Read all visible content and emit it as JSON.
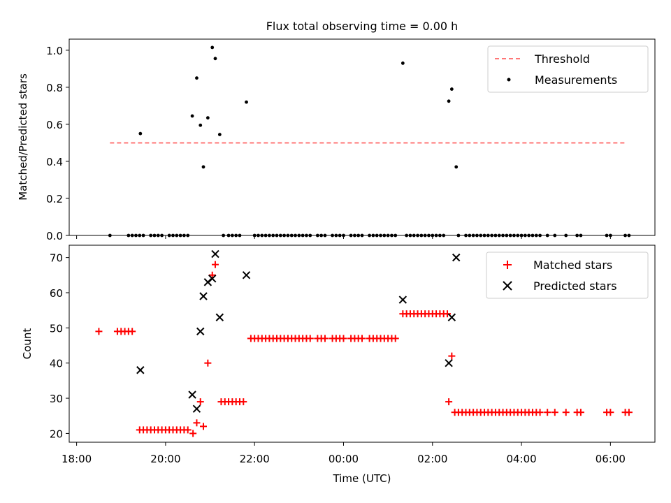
{
  "chart_data": [
    {
      "type": "scatter",
      "title": "Flux total observing time = 0.00 h",
      "xlabel": "",
      "ylabel": "Matched/Predicted stars",
      "ylim": [
        0,
        1.06
      ],
      "yticks": [
        "0.0",
        "0.2",
        "0.4",
        "0.6",
        "0.8",
        "1.0"
      ],
      "legend": "top-right",
      "series": [
        {
          "name": "Threshold",
          "style": "dashed-line",
          "color": "#ff7777",
          "x": [
            "18:45",
            "06:20"
          ],
          "y": [
            0.5,
            0.5
          ]
        },
        {
          "name": "Measurements",
          "style": "dot",
          "color": "#000000",
          "points": [
            [
              "18:45",
              0
            ],
            [
              "19:10",
              0
            ],
            [
              "19:15",
              0
            ],
            [
              "19:20",
              0
            ],
            [
              "19:25",
              0
            ],
            [
              "19:30",
              0
            ],
            [
              "19:40",
              0
            ],
            [
              "19:45",
              0
            ],
            [
              "19:50",
              0
            ],
            [
              "19:55",
              0
            ],
            [
              "20:05",
              0
            ],
            [
              "20:10",
              0
            ],
            [
              "20:15",
              0
            ],
            [
              "20:20",
              0
            ],
            [
              "20:25",
              0
            ],
            [
              "20:30",
              0
            ],
            [
              "19:26",
              0.55
            ],
            [
              "20:36",
              0.645
            ],
            [
              "20:42",
              0.85
            ],
            [
              "20:47",
              0.595
            ],
            [
              "20:51",
              0.37
            ],
            [
              "20:57",
              0.635
            ],
            [
              "21:03",
              1.015
            ],
            [
              "21:07",
              0.955
            ],
            [
              "21:13",
              0.545
            ],
            [
              "21:49",
              0.72
            ],
            [
              "21:18",
              0
            ],
            [
              "21:25",
              0
            ],
            [
              "21:30",
              0
            ],
            [
              "21:35",
              0
            ],
            [
              "21:40",
              0
            ],
            [
              "22:00",
              0
            ],
            [
              "22:05",
              0
            ],
            [
              "22:10",
              0
            ],
            [
              "22:15",
              0
            ],
            [
              "22:20",
              0
            ],
            [
              "22:25",
              0
            ],
            [
              "22:30",
              0
            ],
            [
              "22:35",
              0
            ],
            [
              "22:40",
              0
            ],
            [
              "22:45",
              0
            ],
            [
              "22:50",
              0
            ],
            [
              "22:55",
              0
            ],
            [
              "23:00",
              0
            ],
            [
              "23:05",
              0
            ],
            [
              "23:10",
              0
            ],
            [
              "23:15",
              0
            ],
            [
              "23:25",
              0
            ],
            [
              "23:30",
              0
            ],
            [
              "23:35",
              0
            ],
            [
              "23:45",
              0
            ],
            [
              "23:50",
              0
            ],
            [
              "23:55",
              0
            ],
            [
              "00:00",
              0
            ],
            [
              "00:10",
              0
            ],
            [
              "00:15",
              0
            ],
            [
              "00:20",
              0
            ],
            [
              "00:25",
              0
            ],
            [
              "00:35",
              0
            ],
            [
              "00:40",
              0
            ],
            [
              "00:45",
              0
            ],
            [
              "00:50",
              0
            ],
            [
              "00:55",
              0
            ],
            [
              "01:00",
              0
            ],
            [
              "01:05",
              0
            ],
            [
              "01:10",
              0
            ],
            [
              "01:25",
              0
            ],
            [
              "01:30",
              0
            ],
            [
              "01:35",
              0
            ],
            [
              "01:40",
              0
            ],
            [
              "01:45",
              0
            ],
            [
              "01:50",
              0
            ],
            [
              "01:55",
              0
            ],
            [
              "02:00",
              0
            ],
            [
              "02:05",
              0
            ],
            [
              "02:10",
              0
            ],
            [
              "02:15",
              0
            ],
            [
              "01:20",
              0.93
            ],
            [
              "02:22",
              0.725
            ],
            [
              "02:26",
              0.79
            ],
            [
              "02:32",
              0.37
            ],
            [
              "02:35",
              0
            ],
            [
              "02:45",
              0
            ],
            [
              "02:50",
              0
            ],
            [
              "02:55",
              0
            ],
            [
              "03:00",
              0
            ],
            [
              "03:05",
              0
            ],
            [
              "03:10",
              0
            ],
            [
              "03:15",
              0
            ],
            [
              "03:20",
              0
            ],
            [
              "03:25",
              0
            ],
            [
              "03:30",
              0
            ],
            [
              "03:35",
              0
            ],
            [
              "03:40",
              0
            ],
            [
              "03:45",
              0
            ],
            [
              "03:50",
              0
            ],
            [
              "03:55",
              0
            ],
            [
              "04:00",
              0
            ],
            [
              "04:05",
              0
            ],
            [
              "04:10",
              0
            ],
            [
              "04:15",
              0
            ],
            [
              "04:20",
              0
            ],
            [
              "04:25",
              0
            ],
            [
              "04:35",
              0
            ],
            [
              "04:45",
              0
            ],
            [
              "05:00",
              0
            ],
            [
              "05:15",
              0
            ],
            [
              "05:20",
              0
            ],
            [
              "05:55",
              0
            ],
            [
              "06:00",
              0
            ],
            [
              "06:20",
              0
            ],
            [
              "06:25",
              0
            ]
          ]
        }
      ]
    },
    {
      "type": "scatter",
      "title": "",
      "xlabel": "Time (UTC)",
      "ylabel": "Count",
      "ylim": [
        17.5,
        73.5
      ],
      "yticks": [
        "20",
        "30",
        "40",
        "50",
        "60",
        "70"
      ],
      "xlim": [
        "17:50",
        "07:00"
      ],
      "xticks": [
        "18:00",
        "20:00",
        "22:00",
        "00:00",
        "02:00",
        "04:00",
        "06:00"
      ],
      "legend": "top-right",
      "series": [
        {
          "name": "Matched stars",
          "style": "plus",
          "color": "#ff0000",
          "points": [
            [
              "18:30",
              49
            ],
            [
              "18:55",
              49
            ],
            [
              "19:00",
              49
            ],
            [
              "19:05",
              49
            ],
            [
              "19:10",
              49
            ],
            [
              "19:15",
              49
            ],
            [
              "19:25",
              21
            ],
            [
              "19:30",
              21
            ],
            [
              "19:35",
              21
            ],
            [
              "19:40",
              21
            ],
            [
              "19:45",
              21
            ],
            [
              "19:50",
              21
            ],
            [
              "19:55",
              21
            ],
            [
              "20:00",
              21
            ],
            [
              "20:05",
              21
            ],
            [
              "20:10",
              21
            ],
            [
              "20:15",
              21
            ],
            [
              "20:20",
              21
            ],
            [
              "20:25",
              21
            ],
            [
              "20:30",
              21
            ],
            [
              "20:37",
              20
            ],
            [
              "20:42",
              23
            ],
            [
              "20:47",
              29
            ],
            [
              "20:51",
              22
            ],
            [
              "20:57",
              40
            ],
            [
              "21:03",
              65
            ],
            [
              "21:07",
              68
            ],
            [
              "21:15",
              29
            ],
            [
              "21:20",
              29
            ],
            [
              "21:25",
              29
            ],
            [
              "21:30",
              29
            ],
            [
              "21:35",
              29
            ],
            [
              "21:40",
              29
            ],
            [
              "21:45",
              29
            ],
            [
              "21:55",
              47
            ],
            [
              "22:00",
              47
            ],
            [
              "22:05",
              47
            ],
            [
              "22:10",
              47
            ],
            [
              "22:15",
              47
            ],
            [
              "22:20",
              47
            ],
            [
              "22:25",
              47
            ],
            [
              "22:30",
              47
            ],
            [
              "22:35",
              47
            ],
            [
              "22:40",
              47
            ],
            [
              "22:45",
              47
            ],
            [
              "22:50",
              47
            ],
            [
              "22:55",
              47
            ],
            [
              "23:00",
              47
            ],
            [
              "23:05",
              47
            ],
            [
              "23:10",
              47
            ],
            [
              "23:15",
              47
            ],
            [
              "23:25",
              47
            ],
            [
              "23:30",
              47
            ],
            [
              "23:35",
              47
            ],
            [
              "23:45",
              47
            ],
            [
              "23:50",
              47
            ],
            [
              "23:55",
              47
            ],
            [
              "00:00",
              47
            ],
            [
              "00:10",
              47
            ],
            [
              "00:15",
              47
            ],
            [
              "00:20",
              47
            ],
            [
              "00:25",
              47
            ],
            [
              "00:35",
              47
            ],
            [
              "00:40",
              47
            ],
            [
              "00:45",
              47
            ],
            [
              "00:50",
              47
            ],
            [
              "00:55",
              47
            ],
            [
              "01:00",
              47
            ],
            [
              "01:05",
              47
            ],
            [
              "01:10",
              47
            ],
            [
              "01:20",
              54
            ],
            [
              "01:25",
              54
            ],
            [
              "01:30",
              54
            ],
            [
              "01:35",
              54
            ],
            [
              "01:40",
              54
            ],
            [
              "01:45",
              54
            ],
            [
              "01:50",
              54
            ],
            [
              "01:55",
              54
            ],
            [
              "02:00",
              54
            ],
            [
              "02:05",
              54
            ],
            [
              "02:10",
              54
            ],
            [
              "02:15",
              54
            ],
            [
              "02:20",
              54
            ],
            [
              "02:22",
              29
            ],
            [
              "02:26",
              42
            ],
            [
              "02:30",
              26
            ],
            [
              "02:35",
              26
            ],
            [
              "02:40",
              26
            ],
            [
              "02:45",
              26
            ],
            [
              "02:50",
              26
            ],
            [
              "02:55",
              26
            ],
            [
              "03:00",
              26
            ],
            [
              "03:05",
              26
            ],
            [
              "03:10",
              26
            ],
            [
              "03:15",
              26
            ],
            [
              "03:20",
              26
            ],
            [
              "03:25",
              26
            ],
            [
              "03:30",
              26
            ],
            [
              "03:35",
              26
            ],
            [
              "03:40",
              26
            ],
            [
              "03:45",
              26
            ],
            [
              "03:50",
              26
            ],
            [
              "03:55",
              26
            ],
            [
              "04:00",
              26
            ],
            [
              "04:05",
              26
            ],
            [
              "04:10",
              26
            ],
            [
              "04:15",
              26
            ],
            [
              "04:20",
              26
            ],
            [
              "04:25",
              26
            ],
            [
              "04:35",
              26
            ],
            [
              "04:45",
              26
            ],
            [
              "05:00",
              26
            ],
            [
              "05:15",
              26
            ],
            [
              "05:20",
              26
            ],
            [
              "05:55",
              26
            ],
            [
              "06:00",
              26
            ],
            [
              "06:20",
              26
            ],
            [
              "06:25",
              26
            ]
          ]
        },
        {
          "name": "Predicted stars",
          "style": "cross",
          "color": "#000000",
          "points": [
            [
              "19:26",
              38
            ],
            [
              "20:36",
              31
            ],
            [
              "20:42",
              27
            ],
            [
              "20:47",
              49
            ],
            [
              "20:51",
              59
            ],
            [
              "20:57",
              63
            ],
            [
              "21:03",
              64
            ],
            [
              "21:07",
              71
            ],
            [
              "21:13",
              53
            ],
            [
              "21:49",
              65
            ],
            [
              "01:20",
              58
            ],
            [
              "02:22",
              40
            ],
            [
              "02:26",
              53
            ],
            [
              "02:32",
              70
            ]
          ]
        }
      ]
    }
  ]
}
